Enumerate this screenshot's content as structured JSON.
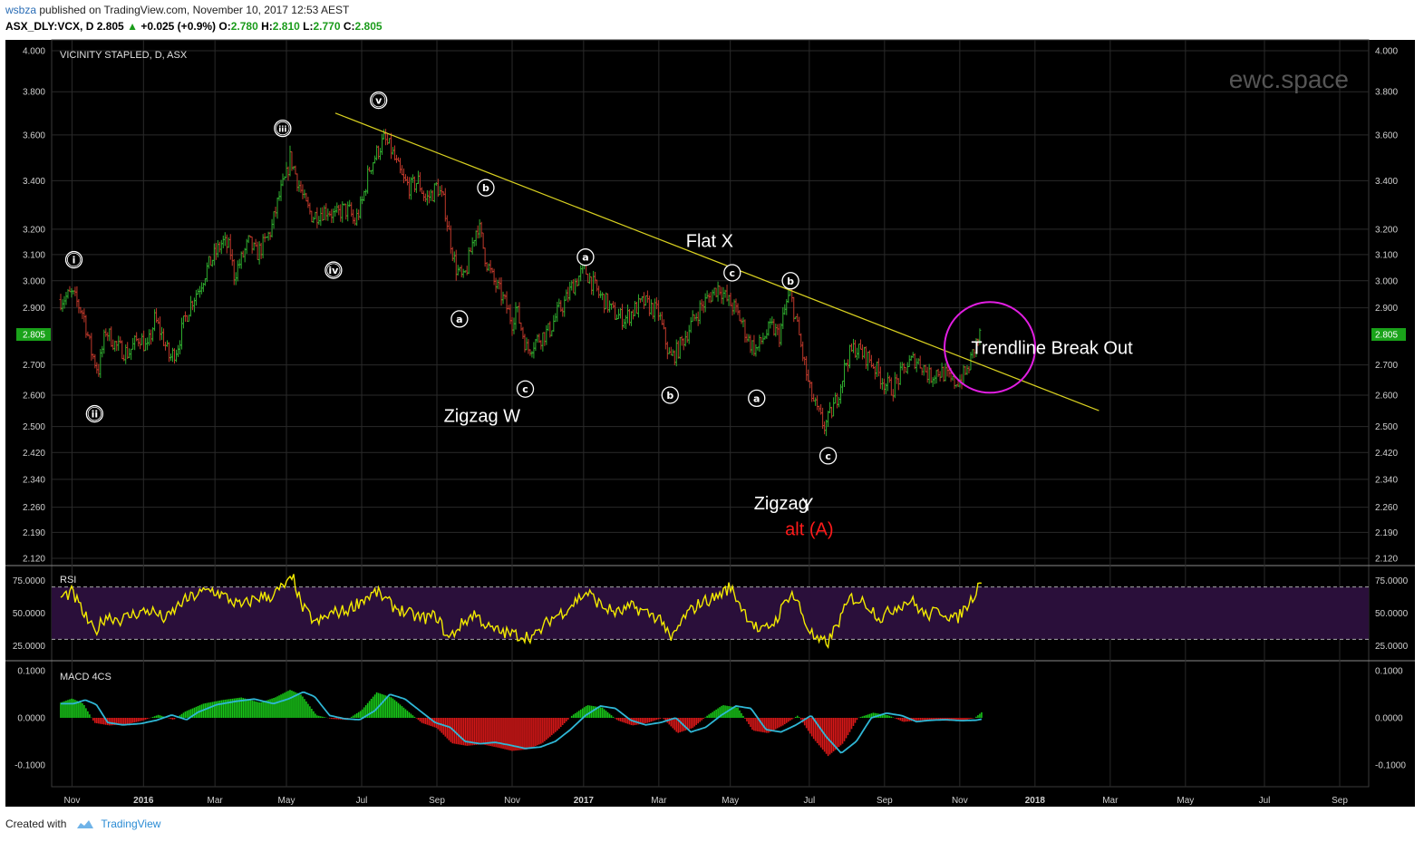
{
  "header": {
    "user": "wsbza",
    "published_text": "published on TradingView.com, November 10, 2017 12:53 AEST",
    "symbol": "ASX_DLY:VCX, D",
    "last": "2.805",
    "change": "+0.025 (+0.9%)",
    "o_label": "O:",
    "o": "2.780",
    "h_label": "H:",
    "h": "2.810",
    "l_label": "L:",
    "l": "2.770",
    "c_label": "C:",
    "c": "2.805"
  },
  "footer": {
    "created_with": "Created with",
    "brand": "TradingView"
  },
  "colors": {
    "background": "#000000",
    "up": "#2fae2f",
    "down": "#c0392b",
    "trendline": "#d8d020",
    "circle": "#e11ee1",
    "rsi_line": "#f2ea00",
    "rsi_band": "#2a0f3a",
    "macd_line": "#2fb7d6",
    "hist_up": "#18c418",
    "hist_down": "#d81818",
    "last_price_tag": "#1aa31a",
    "alt_label": "#ff1a1a"
  },
  "chart_data": [
    {
      "type": "candlestick",
      "title": "VICINITY STAPLED, D, ASX",
      "watermark": "ewc.space",
      "scale": "log",
      "ylim": [
        2.12,
        4.0
      ],
      "y_ticks": [
        "4.000",
        "3.800",
        "3.600",
        "3.400",
        "3.200",
        "3.100",
        "3.000",
        "2.900",
        "2.805",
        "2.700",
        "2.600",
        "2.500",
        "2.420",
        "2.340",
        "2.260",
        "2.190",
        "2.120"
      ],
      "x_tick_labels": [
        {
          "t": 0.3,
          "label": "Nov",
          "bold": false
        },
        {
          "t": 2.2,
          "label": "2016",
          "bold": true
        },
        {
          "t": 4.1,
          "label": "Mar",
          "bold": false
        },
        {
          "t": 6.0,
          "label": "May",
          "bold": false
        },
        {
          "t": 8.0,
          "label": "Jul",
          "bold": false
        },
        {
          "t": 10.0,
          "label": "Sep",
          "bold": false
        },
        {
          "t": 12.0,
          "label": "Nov",
          "bold": false
        },
        {
          "t": 13.9,
          "label": "2017",
          "bold": true
        },
        {
          "t": 15.9,
          "label": "Mar",
          "bold": false
        },
        {
          "t": 17.8,
          "label": "May",
          "bold": false
        },
        {
          "t": 19.9,
          "label": "Jul",
          "bold": false
        },
        {
          "t": 21.9,
          "label": "Sep",
          "bold": false
        },
        {
          "t": 23.9,
          "label": "Nov",
          "bold": false
        },
        {
          "t": 25.9,
          "label": "2018",
          "bold": true
        },
        {
          "t": 27.9,
          "label": "Mar",
          "bold": false
        },
        {
          "t": 29.9,
          "label": "May",
          "bold": false
        },
        {
          "t": 32.0,
          "label": "Jul",
          "bold": false
        },
        {
          "t": 34.0,
          "label": "Sep",
          "bold": false
        }
      ],
      "last_price": "2.805",
      "price_path": [
        [
          0.0,
          2.93
        ],
        [
          0.3,
          2.95
        ],
        [
          0.6,
          2.88
        ],
        [
          0.8,
          2.75
        ],
        [
          1.0,
          2.68
        ],
        [
          1.2,
          2.82
        ],
        [
          1.5,
          2.76
        ],
        [
          1.8,
          2.74
        ],
        [
          2.1,
          2.8
        ],
        [
          2.3,
          2.75
        ],
        [
          2.5,
          2.86
        ],
        [
          2.7,
          2.8
        ],
        [
          2.9,
          2.72
        ],
        [
          3.1,
          2.76
        ],
        [
          3.3,
          2.86
        ],
        [
          3.5,
          2.93
        ],
        [
          3.7,
          2.98
        ],
        [
          3.9,
          3.05
        ],
        [
          4.1,
          3.1
        ],
        [
          4.3,
          3.15
        ],
        [
          4.5,
          3.12
        ],
        [
          4.6,
          3.02
        ],
        [
          4.8,
          3.08
        ],
        [
          5.0,
          3.15
        ],
        [
          5.2,
          3.1
        ],
        [
          5.4,
          3.14
        ],
        [
          5.6,
          3.2
        ],
        [
          5.8,
          3.33
        ],
        [
          6.0,
          3.42
        ],
        [
          6.1,
          3.5
        ],
        [
          6.3,
          3.4
        ],
        [
          6.5,
          3.3
        ],
        [
          6.7,
          3.25
        ],
        [
          6.9,
          3.27
        ],
        [
          7.1,
          3.28
        ],
        [
          7.3,
          3.25
        ],
        [
          7.5,
          3.28
        ],
        [
          7.7,
          3.27
        ],
        [
          7.8,
          3.22
        ],
        [
          8.0,
          3.3
        ],
        [
          8.2,
          3.45
        ],
        [
          8.4,
          3.52
        ],
        [
          8.6,
          3.58
        ],
        [
          8.8,
          3.53
        ],
        [
          8.9,
          3.48
        ],
        [
          9.1,
          3.4
        ],
        [
          9.3,
          3.37
        ],
        [
          9.5,
          3.4
        ],
        [
          9.7,
          3.32
        ],
        [
          9.9,
          3.35
        ],
        [
          10.0,
          3.38
        ],
        [
          10.2,
          3.3
        ],
        [
          10.3,
          3.2
        ],
        [
          10.5,
          3.05
        ],
        [
          10.7,
          3.0
        ],
        [
          10.8,
          3.05
        ],
        [
          11.0,
          3.18
        ],
        [
          11.1,
          3.22
        ],
        [
          11.3,
          3.08
        ],
        [
          11.5,
          3.0
        ],
        [
          11.7,
          2.95
        ],
        [
          11.8,
          2.92
        ],
        [
          12.0,
          2.85
        ],
        [
          12.1,
          2.9
        ],
        [
          12.3,
          2.8
        ],
        [
          12.4,
          2.75
        ],
        [
          12.6,
          2.78
        ],
        [
          12.8,
          2.8
        ],
        [
          13.0,
          2.82
        ],
        [
          13.2,
          2.88
        ],
        [
          13.4,
          2.92
        ],
        [
          13.6,
          2.98
        ],
        [
          13.8,
          3.02
        ],
        [
          13.9,
          3.05
        ],
        [
          14.1,
          3.0
        ],
        [
          14.3,
          2.95
        ],
        [
          14.5,
          2.92
        ],
        [
          14.7,
          2.88
        ],
        [
          15.0,
          2.86
        ],
        [
          15.3,
          2.9
        ],
        [
          15.5,
          2.92
        ],
        [
          15.7,
          2.9
        ],
        [
          15.9,
          2.88
        ],
        [
          16.0,
          2.82
        ],
        [
          16.2,
          2.72
        ],
        [
          16.4,
          2.75
        ],
        [
          16.6,
          2.8
        ],
        [
          16.8,
          2.85
        ],
        [
          17.0,
          2.9
        ],
        [
          17.3,
          2.95
        ],
        [
          17.5,
          2.98
        ],
        [
          17.7,
          2.93
        ],
        [
          17.9,
          2.9
        ],
        [
          18.1,
          2.85
        ],
        [
          18.3,
          2.78
        ],
        [
          18.5,
          2.75
        ],
        [
          18.7,
          2.8
        ],
        [
          18.9,
          2.83
        ],
        [
          19.1,
          2.8
        ],
        [
          19.3,
          2.92
        ],
        [
          19.4,
          2.95
        ],
        [
          19.6,
          2.82
        ],
        [
          19.7,
          2.75
        ],
        [
          19.9,
          2.62
        ],
        [
          20.1,
          2.55
        ],
        [
          20.3,
          2.5
        ],
        [
          20.4,
          2.52
        ],
        [
          20.6,
          2.58
        ],
        [
          20.7,
          2.62
        ],
        [
          20.9,
          2.72
        ],
        [
          21.1,
          2.76
        ],
        [
          21.3,
          2.74
        ],
        [
          21.5,
          2.72
        ],
        [
          21.7,
          2.68
        ],
        [
          21.9,
          2.64
        ],
        [
          22.1,
          2.62
        ],
        [
          22.3,
          2.66
        ],
        [
          22.5,
          2.7
        ],
        [
          22.7,
          2.72
        ],
        [
          22.9,
          2.7
        ],
        [
          23.1,
          2.66
        ],
        [
          23.3,
          2.68
        ],
        [
          23.5,
          2.67
        ],
        [
          23.7,
          2.64
        ],
        [
          23.9,
          2.65
        ],
        [
          24.1,
          2.68
        ],
        [
          24.2,
          2.72
        ],
        [
          24.35,
          2.78
        ],
        [
          24.45,
          2.805
        ]
      ],
      "trendline": {
        "from": [
          7.3,
          3.7
        ],
        "to": [
          27.6,
          2.55
        ]
      },
      "breakout_circle": {
        "center": [
          24.7,
          2.76
        ]
      },
      "wave_labels": [
        {
          "label": "i",
          "t": 0.35,
          "price": 3.08,
          "double": true
        },
        {
          "label": "ii",
          "t": 0.9,
          "price": 2.54,
          "double": true
        },
        {
          "label": "iii",
          "t": 5.9,
          "price": 3.63,
          "double": true
        },
        {
          "label": "iv",
          "t": 7.25,
          "price": 3.04,
          "double": true
        },
        {
          "label": "v",
          "t": 8.45,
          "price": 3.76,
          "double": true
        },
        {
          "label": "a",
          "t": 10.6,
          "price": 2.86,
          "double": false
        },
        {
          "label": "b",
          "t": 11.3,
          "price": 3.37,
          "double": false
        },
        {
          "label": "c",
          "t": 12.35,
          "price": 2.62,
          "double": false
        },
        {
          "label": "a",
          "t": 13.95,
          "price": 3.09,
          "double": false
        },
        {
          "label": "b",
          "t": 16.2,
          "price": 2.6,
          "double": false
        },
        {
          "label": "c",
          "t": 17.85,
          "price": 3.03,
          "double": false
        },
        {
          "label": "a",
          "t": 18.5,
          "price": 2.59,
          "double": false
        },
        {
          "label": "b",
          "t": 19.4,
          "price": 3.0,
          "double": false
        },
        {
          "label": "c",
          "t": 20.4,
          "price": 2.41,
          "double": false
        }
      ],
      "annotations": [
        {
          "text": "Zigzag W",
          "t": 11.2,
          "price": 2.535
        },
        {
          "text": "Flat X",
          "t": 17.25,
          "price": 3.155
        },
        {
          "text": "Zigzag",
          "t": 19.15,
          "price": 2.272
        },
        {
          "text": "Y",
          "t": 19.85,
          "price": 2.268
        },
        {
          "text": "alt (A)",
          "t": 19.9,
          "price": 2.2,
          "red": true
        },
        {
          "text": "Trendline Break Out",
          "t": 26.35,
          "price": 2.76
        }
      ]
    },
    {
      "type": "line",
      "title": "RSI",
      "ylim": [
        15,
        85
      ],
      "y_ticks": [
        "75.0000",
        "50.0000",
        "25.0000"
      ],
      "bands": [
        30,
        70
      ],
      "values_path": [
        [
          0.0,
          62
        ],
        [
          0.3,
          66
        ],
        [
          0.6,
          50
        ],
        [
          0.9,
          35
        ],
        [
          1.2,
          48
        ],
        [
          1.6,
          45
        ],
        [
          2.0,
          50
        ],
        [
          2.4,
          52
        ],
        [
          2.8,
          45
        ],
        [
          3.2,
          58
        ],
        [
          3.6,
          64
        ],
        [
          4.0,
          68
        ],
        [
          4.4,
          62
        ],
        [
          4.8,
          55
        ],
        [
          5.2,
          62
        ],
        [
          5.6,
          63
        ],
        [
          6.0,
          72
        ],
        [
          6.2,
          76
        ],
        [
          6.4,
          55
        ],
        [
          6.8,
          42
        ],
        [
          7.2,
          50
        ],
        [
          7.6,
          52
        ],
        [
          8.0,
          60
        ],
        [
          8.4,
          66
        ],
        [
          8.8,
          56
        ],
        [
          9.2,
          50
        ],
        [
          9.6,
          46
        ],
        [
          10.0,
          48
        ],
        [
          10.3,
          30
        ],
        [
          10.6,
          40
        ],
        [
          11.0,
          50
        ],
        [
          11.4,
          38
        ],
        [
          11.8,
          35
        ],
        [
          12.2,
          33
        ],
        [
          12.6,
          32
        ],
        [
          13.0,
          45
        ],
        [
          13.4,
          52
        ],
        [
          13.8,
          62
        ],
        [
          14.0,
          66
        ],
        [
          14.4,
          55
        ],
        [
          14.8,
          50
        ],
        [
          15.2,
          55
        ],
        [
          15.6,
          50
        ],
        [
          16.0,
          45
        ],
        [
          16.2,
          28
        ],
        [
          16.6,
          48
        ],
        [
          17.0,
          58
        ],
        [
          17.4,
          62
        ],
        [
          17.8,
          70
        ],
        [
          18.2,
          50
        ],
        [
          18.6,
          35
        ],
        [
          19.0,
          44
        ],
        [
          19.4,
          66
        ],
        [
          19.6,
          58
        ],
        [
          19.8,
          42
        ],
        [
          20.1,
          28
        ],
        [
          20.4,
          28
        ],
        [
          20.8,
          50
        ],
        [
          21.0,
          62
        ],
        [
          21.4,
          58
        ],
        [
          21.8,
          46
        ],
        [
          22.2,
          55
        ],
        [
          22.6,
          60
        ],
        [
          23.0,
          48
        ],
        [
          23.4,
          52
        ],
        [
          23.8,
          45
        ],
        [
          24.2,
          60
        ],
        [
          24.5,
          78
        ]
      ]
    },
    {
      "type": "bar+line",
      "title": "MACD 4CS",
      "ylim": [
        -0.14,
        0.12
      ],
      "y_ticks": [
        "0.1000",
        "0.0000",
        "-0.1000"
      ],
      "macd_path": [
        [
          0.0,
          0.03
        ],
        [
          0.3,
          0.038
        ],
        [
          0.6,
          0.028
        ],
        [
          0.9,
          -0.01
        ],
        [
          1.3,
          -0.015
        ],
        [
          1.8,
          -0.012
        ],
        [
          2.2,
          -0.005
        ],
        [
          2.6,
          0.006
        ],
        [
          3.0,
          -0.004
        ],
        [
          3.3,
          0.012
        ],
        [
          3.8,
          0.028
        ],
        [
          4.3,
          0.035
        ],
        [
          4.8,
          0.04
        ],
        [
          5.3,
          0.03
        ],
        [
          5.7,
          0.04
        ],
        [
          6.1,
          0.055
        ],
        [
          6.4,
          0.045
        ],
        [
          6.8,
          0.005
        ],
        [
          7.2,
          -0.002
        ],
        [
          7.6,
          -0.004
        ],
        [
          8.0,
          0.015
        ],
        [
          8.4,
          0.05
        ],
        [
          8.8,
          0.04
        ],
        [
          9.2,
          0.015
        ],
        [
          9.6,
          -0.01
        ],
        [
          10.0,
          -0.02
        ],
        [
          10.4,
          -0.05
        ],
        [
          10.8,
          -0.055
        ],
        [
          11.2,
          -0.052
        ],
        [
          11.6,
          -0.058
        ],
        [
          12.0,
          -0.065
        ],
        [
          12.4,
          -0.062
        ],
        [
          12.8,
          -0.05
        ],
        [
          13.2,
          -0.025
        ],
        [
          13.6,
          0.005
        ],
        [
          14.0,
          0.025
        ],
        [
          14.4,
          0.02
        ],
        [
          14.8,
          -0.005
        ],
        [
          15.2,
          -0.015
        ],
        [
          15.6,
          -0.01
        ],
        [
          16.0,
          0.0
        ],
        [
          16.4,
          -0.03
        ],
        [
          16.8,
          -0.02
        ],
        [
          17.2,
          0.005
        ],
        [
          17.6,
          0.025
        ],
        [
          18.0,
          0.02
        ],
        [
          18.4,
          -0.025
        ],
        [
          18.8,
          -0.03
        ],
        [
          19.2,
          -0.015
        ],
        [
          19.6,
          0.005
        ],
        [
          20.0,
          -0.04
        ],
        [
          20.4,
          -0.075
        ],
        [
          20.8,
          -0.05
        ],
        [
          21.2,
          0.0
        ],
        [
          21.6,
          0.01
        ],
        [
          22.0,
          0.005
        ],
        [
          22.4,
          -0.008
        ],
        [
          22.8,
          -0.005
        ],
        [
          23.2,
          -0.004
        ],
        [
          23.6,
          -0.006
        ],
        [
          24.0,
          -0.005
        ],
        [
          24.3,
          0.0
        ],
        [
          24.5,
          0.012
        ]
      ]
    }
  ]
}
